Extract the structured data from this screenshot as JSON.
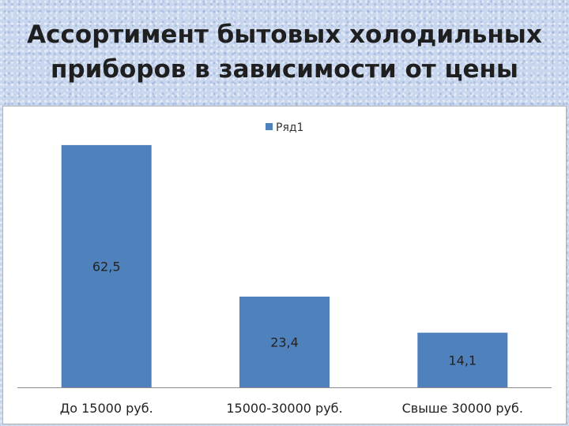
{
  "slide": {
    "title_line1": "Ассортимент бытовых холодильных",
    "title_line2": "приборов в зависимости от цены"
  },
  "colors": {
    "bar": "#4f81bd",
    "axis": "#8c8c8c"
  },
  "chart_data": {
    "type": "bar",
    "title": "",
    "xlabel": "",
    "ylabel": "",
    "categories": [
      "До 15000 руб.",
      "15000-30000 руб.",
      "Свыше 30000 руб."
    ],
    "series": [
      {
        "name": "Ряд1",
        "values": [
          62.5,
          23.4,
          14.1
        ],
        "labels": [
          "62,5",
          "23,4",
          "14,1"
        ]
      }
    ],
    "ylim": [
      0,
      70
    ],
    "grid": false,
    "legend_position": "top-center",
    "data_labels": "center"
  }
}
